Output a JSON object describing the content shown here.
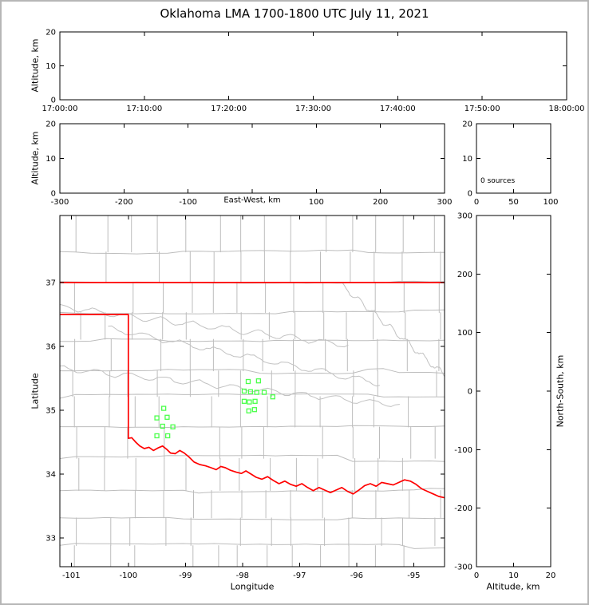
{
  "title": "Oklahoma LMA 1700-1800 UTC July 11, 2021",
  "labels": {
    "altitude_km": "Altitude, km",
    "east_west_km": "East-West, km",
    "north_south_km": "North-South, km",
    "latitude": "Latitude",
    "longitude": "Longitude",
    "sources_annotation": "0 sources"
  },
  "colors": {
    "state_border": "#ff0000",
    "county_line": "#bdbdbd",
    "river_line": "#c2c2c2",
    "station_marker": "#4cff4c",
    "axis": "#000000",
    "background": "#ffffff",
    "window_frame": "#b6b6b6"
  },
  "chart_data": [
    {
      "id": "time_height_panel",
      "type": "scatter",
      "x_tick_labels": [
        "17:00:00",
        "17:10:00",
        "17:20:00",
        "17:30:00",
        "17:40:00",
        "17:50:00",
        "18:00:00"
      ],
      "ylabel": "Altitude, km",
      "ylim": [
        0,
        20
      ],
      "yticks": [
        0,
        10,
        20
      ],
      "points": []
    },
    {
      "id": "ew_height_panel",
      "type": "scatter",
      "xlabel": "East-West, km",
      "xlim": [
        -300,
        300
      ],
      "xticks": [
        -300,
        -200,
        -100,
        0,
        100,
        200,
        300
      ],
      "x_tick_labels": [
        "-300",
        "-200",
        "-100",
        "",
        "100",
        "200",
        "300"
      ],
      "ylabel": "Altitude, km",
      "ylim": [
        0,
        20
      ],
      "yticks": [
        0,
        10,
        20
      ],
      "points": []
    },
    {
      "id": "altitude_histogram_panel",
      "type": "line",
      "annotation": "0 sources",
      "xlim": [
        0,
        100
      ],
      "xticks": [
        0,
        50,
        100
      ],
      "ylim": [
        0,
        20
      ],
      "yticks": [
        0,
        10,
        20
      ],
      "points": []
    },
    {
      "id": "plan_view_map_panel",
      "type": "scatter",
      "xlabel": "Longitude",
      "ylabel": "Latitude",
      "xlim": [
        -101.2,
        -94.46
      ],
      "xticks": [
        -101,
        -100,
        -99,
        -98,
        -97,
        -96,
        -95
      ],
      "ylim": [
        32.55,
        38.05
      ],
      "yticks": [
        33,
        34,
        35,
        36,
        37
      ],
      "stations_lonlat": [
        [
          -97.9,
          35.45
        ],
        [
          -97.72,
          35.46
        ],
        [
          -97.97,
          35.3
        ],
        [
          -97.86,
          35.29
        ],
        [
          -97.75,
          35.28
        ],
        [
          -97.62,
          35.28
        ],
        [
          -97.97,
          35.14
        ],
        [
          -97.88,
          35.13
        ],
        [
          -97.78,
          35.14
        ],
        [
          -97.47,
          35.21
        ],
        [
          -97.89,
          34.99
        ],
        [
          -97.79,
          35.01
        ],
        [
          -99.38,
          35.03
        ],
        [
          -99.5,
          34.88
        ],
        [
          -99.32,
          34.89
        ],
        [
          -99.4,
          34.75
        ],
        [
          -99.5,
          34.6
        ],
        [
          -99.31,
          34.6
        ],
        [
          -99.22,
          34.74
        ]
      ],
      "oklahoma_border": {
        "north_lat": 37.0,
        "panhandle_south_lat": 36.5,
        "west_lon": -100.0,
        "red_river_lonlat": [
          [
            -100.0,
            34.56
          ],
          [
            -99.94,
            34.57
          ],
          [
            -99.87,
            34.5
          ],
          [
            -99.8,
            34.44
          ],
          [
            -99.72,
            34.4
          ],
          [
            -99.64,
            34.42
          ],
          [
            -99.56,
            34.37
          ],
          [
            -99.48,
            34.41
          ],
          [
            -99.4,
            34.44
          ],
          [
            -99.33,
            34.39
          ],
          [
            -99.26,
            34.33
          ],
          [
            -99.18,
            34.32
          ],
          [
            -99.1,
            34.37
          ],
          [
            -99.02,
            34.33
          ],
          [
            -98.94,
            34.27
          ],
          [
            -98.85,
            34.19
          ],
          [
            -98.75,
            34.15
          ],
          [
            -98.65,
            34.13
          ],
          [
            -98.55,
            34.1
          ],
          [
            -98.46,
            34.07
          ],
          [
            -98.38,
            34.12
          ],
          [
            -98.3,
            34.1
          ],
          [
            -98.21,
            34.06
          ],
          [
            -98.11,
            34.03
          ],
          [
            -98.02,
            34.01
          ],
          [
            -97.94,
            34.05
          ],
          [
            -97.85,
            34.0
          ],
          [
            -97.76,
            33.95
          ],
          [
            -97.66,
            33.92
          ],
          [
            -97.56,
            33.96
          ],
          [
            -97.46,
            33.9
          ],
          [
            -97.36,
            33.85
          ],
          [
            -97.26,
            33.89
          ],
          [
            -97.16,
            33.84
          ],
          [
            -97.06,
            33.81
          ],
          [
            -96.96,
            33.85
          ],
          [
            -96.86,
            33.79
          ],
          [
            -96.76,
            33.74
          ],
          [
            -96.66,
            33.79
          ],
          [
            -96.56,
            33.75
          ],
          [
            -96.46,
            33.71
          ],
          [
            -96.36,
            33.75
          ],
          [
            -96.26,
            33.79
          ],
          [
            -96.16,
            33.73
          ],
          [
            -96.06,
            33.69
          ],
          [
            -95.96,
            33.75
          ],
          [
            -95.86,
            33.82
          ],
          [
            -95.76,
            33.85
          ],
          [
            -95.66,
            33.81
          ],
          [
            -95.56,
            33.87
          ],
          [
            -95.46,
            33.85
          ],
          [
            -95.36,
            33.83
          ],
          [
            -95.26,
            33.87
          ],
          [
            -95.16,
            33.91
          ],
          [
            -95.06,
            33.89
          ],
          [
            -94.96,
            33.84
          ],
          [
            -94.86,
            33.77
          ],
          [
            -94.76,
            33.73
          ],
          [
            -94.66,
            33.69
          ],
          [
            -94.56,
            33.65
          ],
          [
            -94.46,
            33.63
          ]
        ]
      }
    },
    {
      "id": "ns_height_panel",
      "type": "scatter",
      "xlabel": "Altitude, km",
      "xlim": [
        0,
        20
      ],
      "xticks": [
        0,
        10,
        20
      ],
      "ylabel": "North-South, km",
      "ylim": [
        -300,
        300
      ],
      "yticks": [
        -300,
        -200,
        -100,
        0,
        100,
        200,
        300
      ],
      "points": []
    }
  ]
}
